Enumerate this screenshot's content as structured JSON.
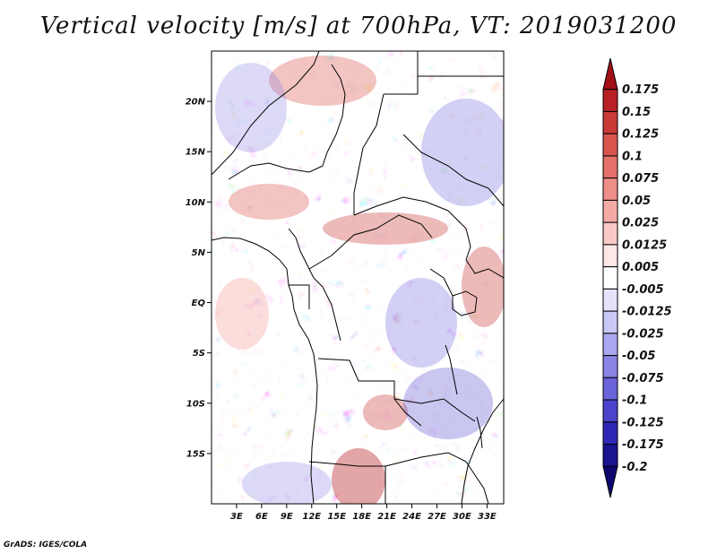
{
  "title": "Vertical velocity [m/s] at 700hPa, VT: 2019031200",
  "footer": "GrADS: IGES/COLA",
  "map": {
    "lon_range": [
      0,
      35
    ],
    "lat_range": [
      -20,
      25
    ],
    "lat_ticks": [
      {
        "lat": 20,
        "label": "20N"
      },
      {
        "lat": 15,
        "label": "15N"
      },
      {
        "lat": 10,
        "label": "10N"
      },
      {
        "lat": 5,
        "label": "5N"
      },
      {
        "lat": 0,
        "label": "EQ"
      },
      {
        "lat": -5,
        "label": "5S"
      },
      {
        "lat": -10,
        "label": "10S"
      },
      {
        "lat": -15,
        "label": "15S"
      }
    ],
    "lon_ticks": [
      {
        "lon": 3,
        "label": "3E"
      },
      {
        "lon": 6,
        "label": "6E"
      },
      {
        "lon": 9,
        "label": "9E"
      },
      {
        "lon": 12,
        "label": "12E"
      },
      {
        "lon": 15,
        "label": "15E"
      },
      {
        "lon": 18,
        "label": "18E"
      },
      {
        "lon": 21,
        "label": "21E"
      },
      {
        "lon": 24,
        "label": "24E"
      },
      {
        "lon": 27,
        "label": "27E"
      },
      {
        "lon": 30,
        "label": "30E"
      },
      {
        "lon": 33,
        "label": "33E"
      }
    ]
  },
  "colorbar": {
    "labels": [
      "0.175",
      "0.15",
      "0.125",
      "0.1",
      "0.075",
      "0.05",
      "0.025",
      "0.0125",
      "0.005",
      "-0.005",
      "-0.0125",
      "-0.025",
      "-0.05",
      "-0.075",
      "-0.1",
      "-0.125",
      "-0.175",
      "-0.2"
    ],
    "colors": [
      "#a10f18",
      "#b72025",
      "#c93a37",
      "#d9564f",
      "#e4716a",
      "#ee8e88",
      "#f4aba6",
      "#f9c9c6",
      "#fde6e4",
      "#ffffff",
      "#e4e3fb",
      "#c9c7f5",
      "#aaa7ee",
      "#8a85e5",
      "#6a63da",
      "#4b43cc",
      "#2f28b6",
      "#1b138f",
      "#0d0870"
    ]
  }
}
